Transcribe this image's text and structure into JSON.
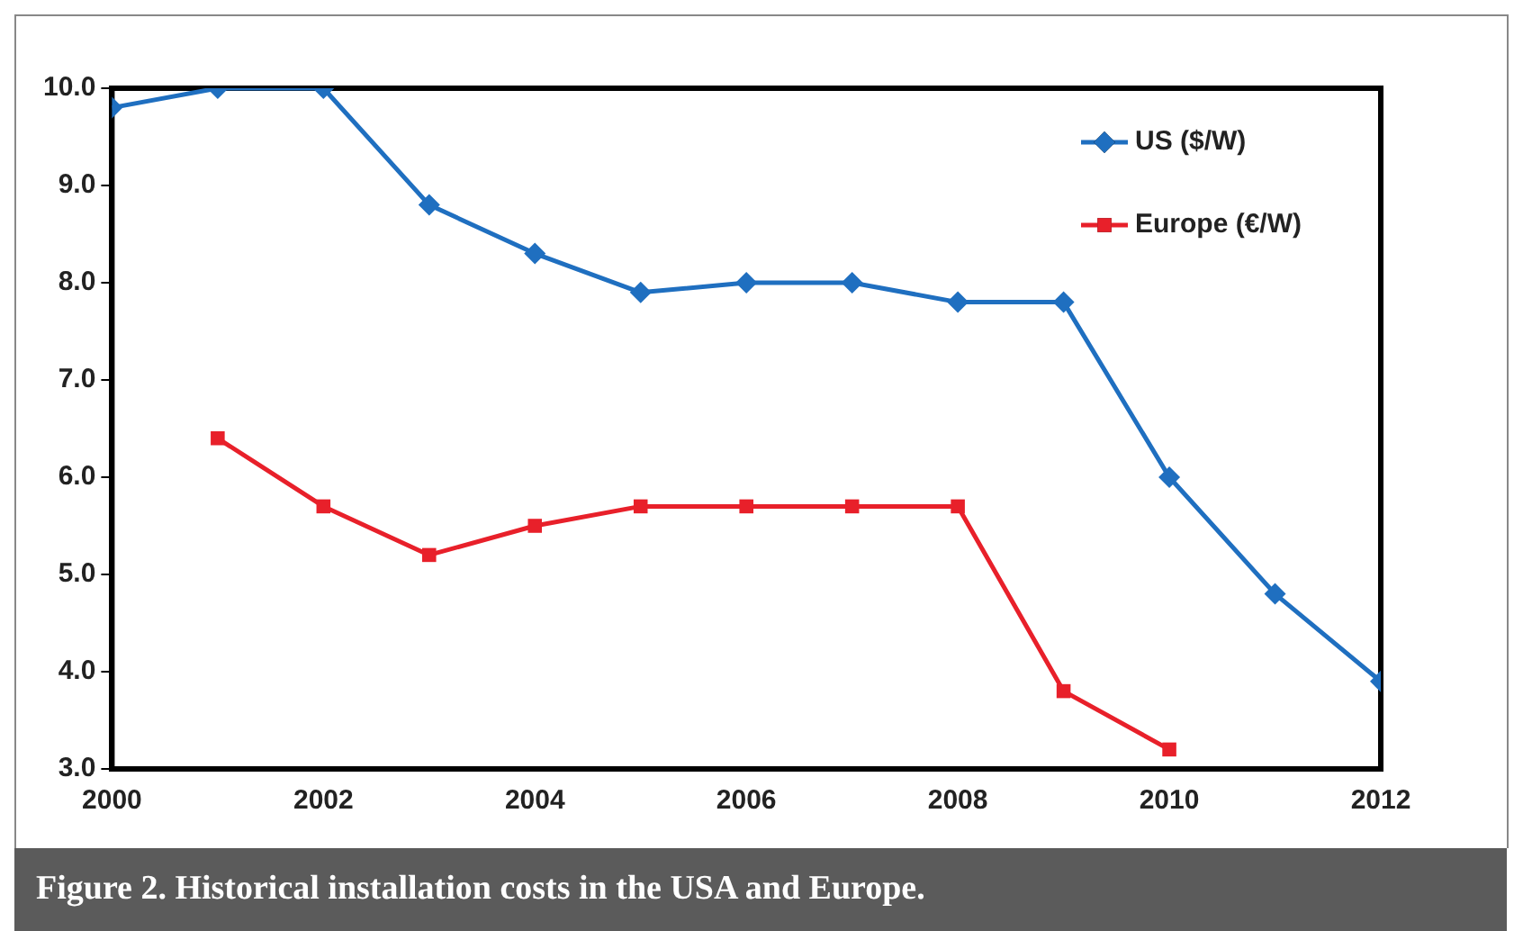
{
  "chart_data": {
    "type": "line",
    "x": [
      2000,
      2001,
      2002,
      2003,
      2004,
      2005,
      2006,
      2007,
      2008,
      2009,
      2010,
      2011,
      2012
    ],
    "series": [
      {
        "name": "US ($/W)",
        "color": "#1f6fc0",
        "marker": "diamond",
        "values": [
          9.8,
          10.0,
          10.0,
          8.8,
          8.3,
          7.9,
          8.0,
          8.0,
          7.8,
          7.8,
          6.0,
          4.8,
          3.9
        ]
      },
      {
        "name": "Europe (€/W)",
        "color": "#e8202a",
        "marker": "square",
        "values": [
          null,
          6.4,
          5.7,
          5.2,
          5.5,
          5.7,
          5.7,
          5.7,
          5.7,
          3.8,
          3.2,
          null,
          null
        ]
      }
    ],
    "xlim": [
      2000,
      2012
    ],
    "xticks": [
      2000,
      2002,
      2004,
      2006,
      2008,
      2010,
      2012
    ],
    "ylim": [
      3,
      10
    ],
    "yticks": [
      {
        "value": 3,
        "label": "3.0"
      },
      {
        "value": 4,
        "label": "4.0"
      },
      {
        "value": 5,
        "label": "5.0"
      },
      {
        "value": 6,
        "label": "6.0"
      },
      {
        "value": 7,
        "label": "7.0"
      },
      {
        "value": 8,
        "label": "8.0"
      },
      {
        "value": 9,
        "label": "9.0"
      },
      {
        "value": 10,
        "label": "10.0"
      }
    ],
    "grid": false,
    "legend": "top right",
    "line_style": "solid",
    "annotations": [
      "Figure 2. Historical installation costs in the USA and Europe."
    ]
  }
}
